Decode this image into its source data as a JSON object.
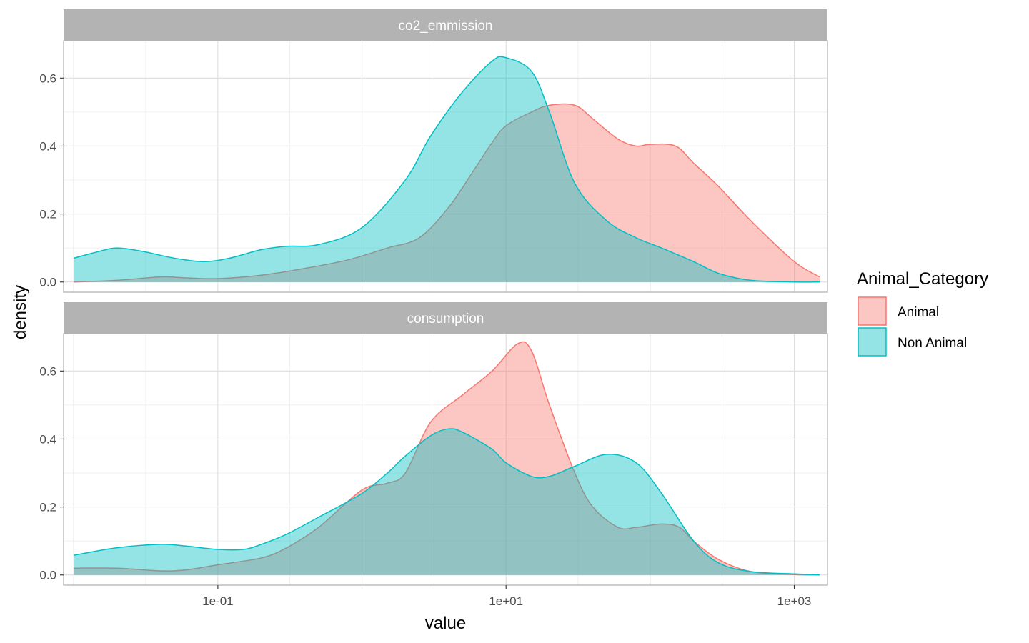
{
  "chart_data": {
    "type": "area",
    "xlabel": "value",
    "ylabel": "density",
    "x_scale": "log10",
    "xlim": [
      0.0085,
      1700
    ],
    "ylim": [
      -0.03,
      0.71
    ],
    "x_ticks": [
      {
        "value": 0.1,
        "label": "1e-01"
      },
      {
        "value": 10,
        "label": "1e+01"
      },
      {
        "value": 1000,
        "label": "1e+03"
      }
    ],
    "y_ticks": [
      {
        "value": 0.0,
        "label": "0.0"
      },
      {
        "value": 0.2,
        "label": "0.2"
      },
      {
        "value": 0.4,
        "label": "0.4"
      },
      {
        "value": 0.6,
        "label": "0.6"
      }
    ],
    "grid": true,
    "legend": {
      "title": "Animal_Category",
      "position": "right",
      "entries": [
        {
          "name": "Animal",
          "fill": "#F8766D",
          "line": "#F8766D"
        },
        {
          "name": "Non Animal",
          "fill": "#00BFC4",
          "line": "#00BFC4"
        }
      ]
    },
    "panels": [
      {
        "strip": "co2_emmission",
        "series": [
          {
            "name": "Animal",
            "x": [
              0.01,
              0.02,
              0.04,
              0.06,
              0.1,
              0.2,
              0.4,
              0.8,
              1.5,
              2.5,
              4,
              6,
              8,
              10,
              15,
              20,
              30,
              40,
              60,
              80,
              100,
              150,
              200,
              300,
              500,
              1000,
              1500
            ],
            "y": [
              0.0,
              0.005,
              0.015,
              0.012,
              0.01,
              0.02,
              0.04,
              0.065,
              0.1,
              0.13,
              0.22,
              0.33,
              0.41,
              0.46,
              0.5,
              0.52,
              0.52,
              0.48,
              0.42,
              0.4,
              0.405,
              0.4,
              0.35,
              0.28,
              0.18,
              0.06,
              0.015
            ]
          },
          {
            "name": "Non Animal",
            "x": [
              0.01,
              0.015,
              0.02,
              0.03,
              0.05,
              0.08,
              0.12,
              0.2,
              0.3,
              0.5,
              1,
              2,
              3,
              5,
              8,
              10,
              15,
              20,
              30,
              50,
              80,
              120,
              200,
              300,
              500,
              1000,
              1500
            ],
            "y": [
              0.07,
              0.09,
              0.1,
              0.09,
              0.07,
              0.06,
              0.07,
              0.095,
              0.105,
              0.11,
              0.16,
              0.3,
              0.43,
              0.56,
              0.65,
              0.66,
              0.62,
              0.5,
              0.29,
              0.18,
              0.13,
              0.1,
              0.06,
              0.025,
              0.005,
              0.0,
              0.0
            ]
          }
        ]
      },
      {
        "strip": "consumption",
        "series": [
          {
            "name": "Animal",
            "x": [
              0.01,
              0.02,
              0.04,
              0.06,
              0.1,
              0.2,
              0.3,
              0.5,
              1,
              1.5,
              2,
              3,
              5,
              8,
              12,
              15,
              20,
              30,
              40,
              60,
              80,
              120,
              160,
              200,
              300,
              500,
              1000,
              1500
            ],
            "y": [
              0.02,
              0.02,
              0.012,
              0.015,
              0.03,
              0.05,
              0.08,
              0.14,
              0.25,
              0.27,
              0.3,
              0.45,
              0.53,
              0.6,
              0.68,
              0.66,
              0.5,
              0.3,
              0.2,
              0.14,
              0.14,
              0.15,
              0.14,
              0.1,
              0.045,
              0.01,
              0.001,
              0.0
            ]
          },
          {
            "name": "Non Animal",
            "x": [
              0.01,
              0.02,
              0.04,
              0.06,
              0.1,
              0.15,
              0.2,
              0.3,
              0.5,
              1,
              1.5,
              2,
              3,
              4,
              5,
              8,
              10,
              15,
              20,
              30,
              50,
              80,
              120,
              200,
              300,
              500,
              1000,
              1500
            ],
            "y": [
              0.058,
              0.08,
              0.09,
              0.085,
              0.075,
              0.075,
              0.09,
              0.12,
              0.17,
              0.24,
              0.3,
              0.35,
              0.41,
              0.43,
              0.42,
              0.37,
              0.33,
              0.29,
              0.29,
              0.32,
              0.355,
              0.33,
              0.24,
              0.1,
              0.035,
              0.01,
              0.003,
              0.0
            ]
          }
        ]
      }
    ]
  }
}
